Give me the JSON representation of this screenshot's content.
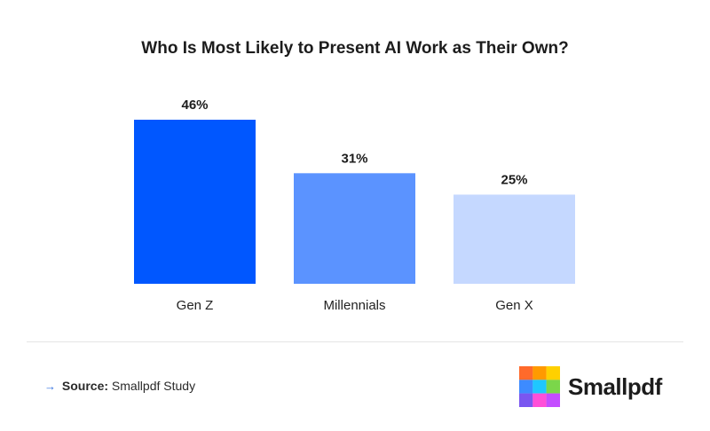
{
  "chart_data": {
    "type": "bar",
    "title": "Who Is Most Likely to Present AI Work as Their Own?",
    "categories": [
      "Gen Z",
      "Millennials",
      "Gen X"
    ],
    "values": [
      46,
      31,
      25
    ],
    "value_labels": [
      "46%",
      "31%",
      "25%"
    ],
    "bar_colors": [
      "#0057ff",
      "#5b93ff",
      "#c5d8ff"
    ],
    "ylim": [
      0,
      46
    ],
    "grid": false,
    "legend": "none"
  },
  "source": {
    "arrow_icon": "arrow-right-icon",
    "label": "Source:",
    "text": "Smallpdf Study"
  },
  "brand": {
    "name": "Smallpdf",
    "logo_colors": [
      "#ff6a2b",
      "#ff9a00",
      "#ffd000",
      "#3d8bff",
      "#1fc7ff",
      "#7bd64a",
      "#7a56f0",
      "#ff4fd8",
      "#c44dff"
    ]
  }
}
